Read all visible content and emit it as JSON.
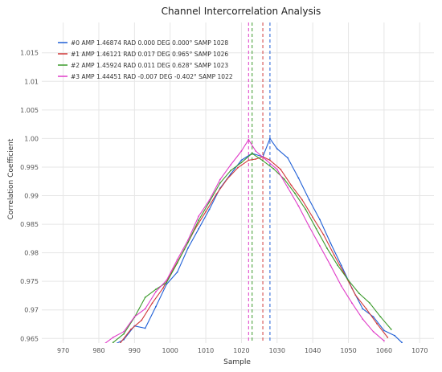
{
  "chart_data": {
    "type": "line",
    "title": "Channel Intercorrelation Analysis",
    "xlabel": "Sample",
    "ylabel": "Correlation Coefficient",
    "xlim": [
      964,
      1074
    ],
    "ylim": [
      0.9642,
      1.0203
    ],
    "x_ticks": [
      970,
      980,
      990,
      1000,
      1010,
      1020,
      1030,
      1040,
      1050,
      1060,
      1070
    ],
    "x_tick_labels": [
      "970",
      "980",
      "990",
      "1000",
      "1010",
      "1020",
      "1030",
      "1040",
      "1050",
      "1060",
      "1070"
    ],
    "y_ticks": [
      0.965,
      0.97,
      0.975,
      0.98,
      0.985,
      0.99,
      0.995,
      1.0,
      1.005,
      1.01,
      1.015
    ],
    "y_tick_labels": [
      "0.965",
      "0.97",
      "0.975",
      "0.98",
      "0.985",
      "0.99",
      "0.995",
      "1.00",
      "1.005",
      "1.01",
      "1.015"
    ],
    "grid": true,
    "legend_position": "top-left",
    "series": [
      {
        "name": "#0 AMP 1.46874 RAD 0.000 DEG 0.000° SAMP 1028",
        "color": "#1f5fd6",
        "dash": "none",
        "peak_x": 1028,
        "x": [
          983,
          987,
          990,
          993,
          996,
          999,
          1002,
          1005,
          1008,
          1011,
          1014,
          1017,
          1020,
          1023,
          1026,
          1028,
          1030,
          1033,
          1036,
          1039,
          1042,
          1045,
          1048,
          1051,
          1054,
          1057,
          1060,
          1063,
          1065
        ],
        "y": [
          0.9635,
          0.9648,
          0.9672,
          0.9668,
          0.9706,
          0.9745,
          0.9766,
          0.9808,
          0.9842,
          0.9876,
          0.9913,
          0.9938,
          0.9962,
          0.9974,
          0.9968,
          1.0,
          0.9982,
          0.9966,
          0.9931,
          0.9893,
          0.9858,
          0.9817,
          0.9778,
          0.9738,
          0.9702,
          0.9688,
          0.9664,
          0.9655,
          0.9643
        ]
      },
      {
        "name": "#1 AMP 1.46121 RAD 0.017 DEG 0.965° SAMP 1026",
        "color": "#d13a3a",
        "dash": "none",
        "peak_x": 1026,
        "x": [
          986,
          989,
          992,
          995,
          998,
          1001,
          1004,
          1007,
          1010,
          1013,
          1016,
          1019,
          1022,
          1024,
          1026,
          1028,
          1031,
          1034,
          1037,
          1040,
          1043,
          1046,
          1049,
          1052,
          1055,
          1058,
          1061
        ],
        "y": [
          0.9642,
          0.9666,
          0.9682,
          0.9712,
          0.9738,
          0.9772,
          0.9806,
          0.9842,
          0.9872,
          0.9903,
          0.9929,
          0.9949,
          0.9962,
          0.9964,
          0.9968,
          0.9962,
          0.9946,
          0.9918,
          0.9893,
          0.9862,
          0.9832,
          0.9796,
          0.9762,
          0.9726,
          0.9702,
          0.9676,
          0.9652
        ]
      },
      {
        "name": "#2 AMP 1.45924 RAD 0.011 DEG 0.628° SAMP 1023",
        "color": "#3a9a2a",
        "dash": "none",
        "peak_x": 1023,
        "x": [
          984,
          987,
          990,
          993,
          996,
          999,
          1002,
          1005,
          1008,
          1011,
          1014,
          1017,
          1020,
          1023,
          1026,
          1029,
          1032,
          1035,
          1038,
          1041,
          1044,
          1047,
          1050,
          1053,
          1056,
          1059,
          1062
        ],
        "y": [
          0.9643,
          0.9658,
          0.9687,
          0.9722,
          0.9736,
          0.9748,
          0.9782,
          0.9818,
          0.9857,
          0.9889,
          0.9922,
          0.9944,
          0.9958,
          0.9974,
          0.9961,
          0.9947,
          0.9929,
          0.9904,
          0.9876,
          0.9842,
          0.9808,
          0.9778,
          0.9752,
          0.9729,
          0.9712,
          0.9688,
          0.9666
        ]
      },
      {
        "name": "#3 AMP 1.44451 RAD -0.007 DEG -0.402° SAMP 1022",
        "color": "#e03cc8",
        "dash": "none",
        "peak_x": 1022,
        "x": [
          981,
          984,
          987,
          990,
          993,
          996,
          999,
          1002,
          1005,
          1008,
          1011,
          1014,
          1017,
          1020,
          1022,
          1024,
          1027,
          1030,
          1033,
          1036,
          1039,
          1042,
          1045,
          1048,
          1051,
          1054,
          1057,
          1060
        ],
        "y": [
          0.9638,
          0.9652,
          0.9662,
          0.9688,
          0.9702,
          0.9732,
          0.9752,
          0.9788,
          0.9822,
          0.9864,
          0.9892,
          0.9928,
          0.9954,
          0.9978,
          0.9998,
          0.9978,
          0.9962,
          0.9946,
          0.9914,
          0.9882,
          0.9846,
          0.9812,
          0.9778,
          0.9742,
          0.9712,
          0.9684,
          0.9662,
          0.9646
        ]
      }
    ]
  }
}
